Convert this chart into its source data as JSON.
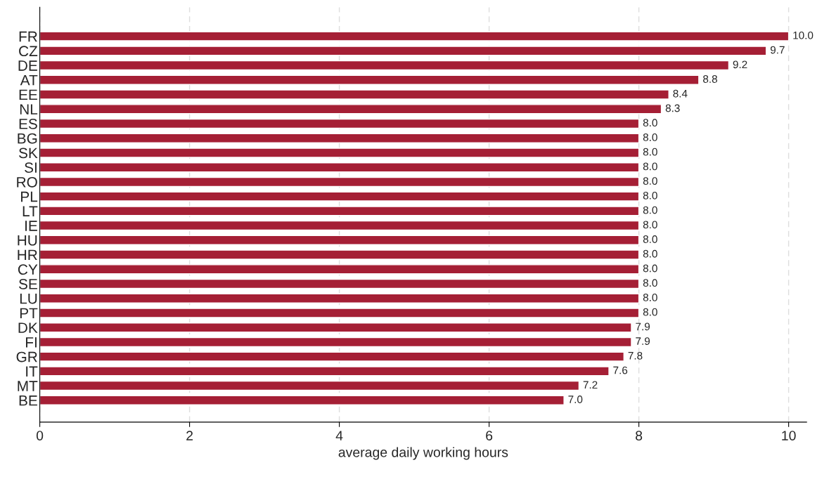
{
  "chart_data": {
    "type": "bar",
    "orientation": "horizontal",
    "xlabel": "average daily working hours",
    "categories": [
      "FR",
      "CZ",
      "DE",
      "AT",
      "EE",
      "NL",
      "ES",
      "BG",
      "SK",
      "SI",
      "RO",
      "PL",
      "LT",
      "IE",
      "HU",
      "HR",
      "CY",
      "SE",
      "LU",
      "PT",
      "DK",
      "FI",
      "GR",
      "IT",
      "MT",
      "BE"
    ],
    "values": [
      10.0,
      9.7,
      9.2,
      8.8,
      8.4,
      8.3,
      8.0,
      8.0,
      8.0,
      8.0,
      8.0,
      8.0,
      8.0,
      8.0,
      8.0,
      8.0,
      8.0,
      8.0,
      8.0,
      8.0,
      7.9,
      7.9,
      7.8,
      7.6,
      7.2,
      7.0
    ],
    "value_labels": [
      "10.0",
      "9.7",
      "9.2",
      "8.8",
      "8.4",
      "8.3",
      "8.0",
      "8.0",
      "8.0",
      "8.0",
      "8.0",
      "8.0",
      "8.0",
      "8.0",
      "8.0",
      "8.0",
      "8.0",
      "8.0",
      "8.0",
      "8.0",
      "7.9",
      "7.9",
      "7.8",
      "7.6",
      "7.2",
      "7.0"
    ],
    "color": "#a51f35",
    "xlim": [
      0,
      10.24
    ],
    "xticks": [
      0,
      2,
      4,
      6,
      8,
      10
    ],
    "grid": "x"
  }
}
